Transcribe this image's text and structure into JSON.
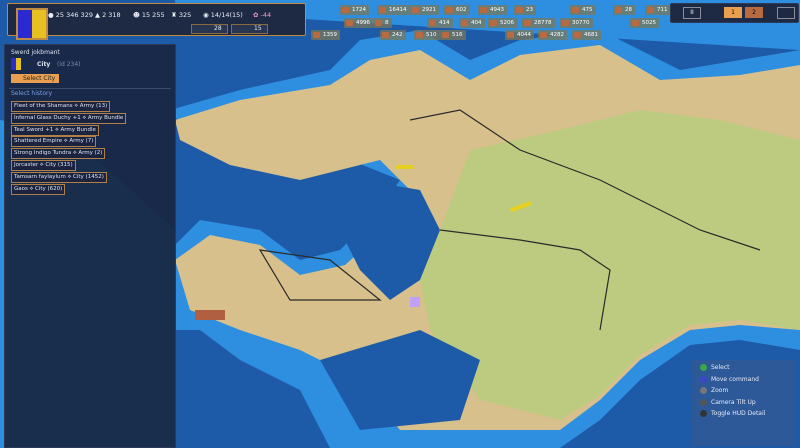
{
  "top_hud": {
    "gold": "25 346 329",
    "income": "2 318",
    "population": "15 255",
    "units": "325",
    "turn": "14/14(15)",
    "happiness": "-44",
    "mini_a": "28",
    "mini_b": "15"
  },
  "colors": {
    "flag_left": "#2a2ad0",
    "flag_right": "#e8c020",
    "ocean_deep": "#1d5aa8",
    "ocean_shallow": "#2e8fe0",
    "land_tan": "#d8c08c",
    "land_green": "#bccb80",
    "border_brown": "#c08a40"
  },
  "resources": {
    "row1": [
      "1724",
      "16414",
      "2921",
      "602",
      "4943",
      "23",
      "475",
      "28",
      "711"
    ],
    "row2": [
      "4996",
      "8",
      "414",
      "404",
      "5206",
      "28778",
      "30770",
      "5025"
    ],
    "row3": [
      "1359",
      "242",
      "510",
      "516",
      "4044",
      "4282",
      "4681"
    ]
  },
  "speed_controls": {
    "pause": "II",
    "speed1": "1",
    "speed2": "2"
  },
  "panel": {
    "selected_name": "Swerd jokbmant",
    "selected_type": "City",
    "selected_id": "(id 234)",
    "select_button": "Select City",
    "history_title": "Select history",
    "history": [
      "Fleet of the Shamans ⟡ Army (13)",
      "Infernal Glass Duchy +1 ⟡ Army Bundle",
      "Teal Sword +1 ⟡ Army Bundle",
      "Shattered Empire ⟡ Army (7)",
      "Strong Indigo Tundra ⟡ Army (2)",
      "Jorcaster ⟡ City (315)",
      "Tamsarn faylaylum ⟡ City (1452)",
      "Gaos ⟡ City (620)"
    ]
  },
  "help": [
    {
      "label": "Select",
      "color": "#3aa84a"
    },
    {
      "label": "Move command",
      "color": "#3a48c8"
    },
    {
      "label": "Zoom",
      "color": "#777"
    },
    {
      "label": "Camera Tilt Up",
      "color": "#555"
    },
    {
      "label": "Toggle HUD Detail",
      "color": "#333"
    }
  ]
}
